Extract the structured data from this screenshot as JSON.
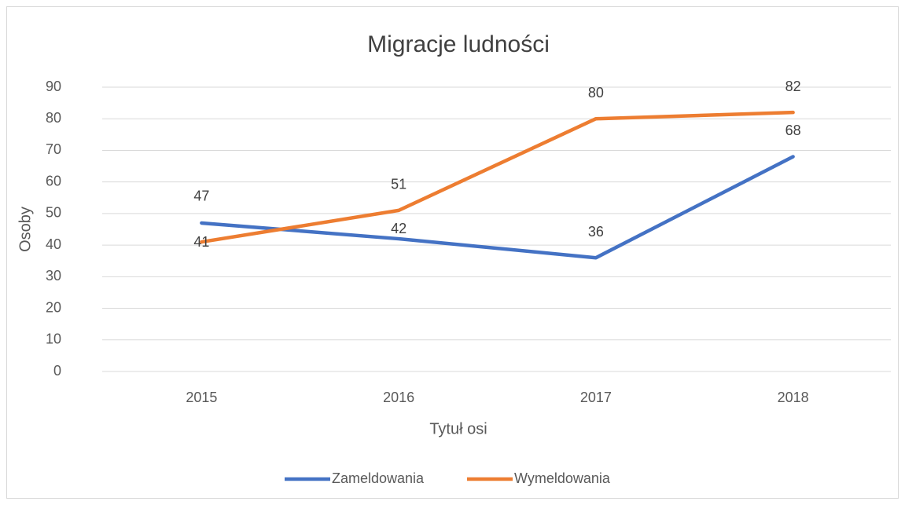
{
  "chart_data": {
    "type": "line",
    "title": "Migracje ludności",
    "x_label": "Tytuł osi",
    "y_label": "Osoby",
    "categories": [
      "2015",
      "2016",
      "2017",
      "2018"
    ],
    "series": [
      {
        "name": "Zameldowania",
        "color": "#4472c4",
        "values": [
          47,
          42,
          36,
          68
        ]
      },
      {
        "name": "Wymeldowania",
        "color": "#ed7d31",
        "values": [
          41,
          51,
          80,
          82
        ]
      }
    ],
    "ylim": [
      0,
      90
    ],
    "yticks": [
      0,
      10,
      20,
      30,
      40,
      50,
      60,
      70,
      80,
      90
    ],
    "grid": true,
    "legend": "bottom"
  }
}
